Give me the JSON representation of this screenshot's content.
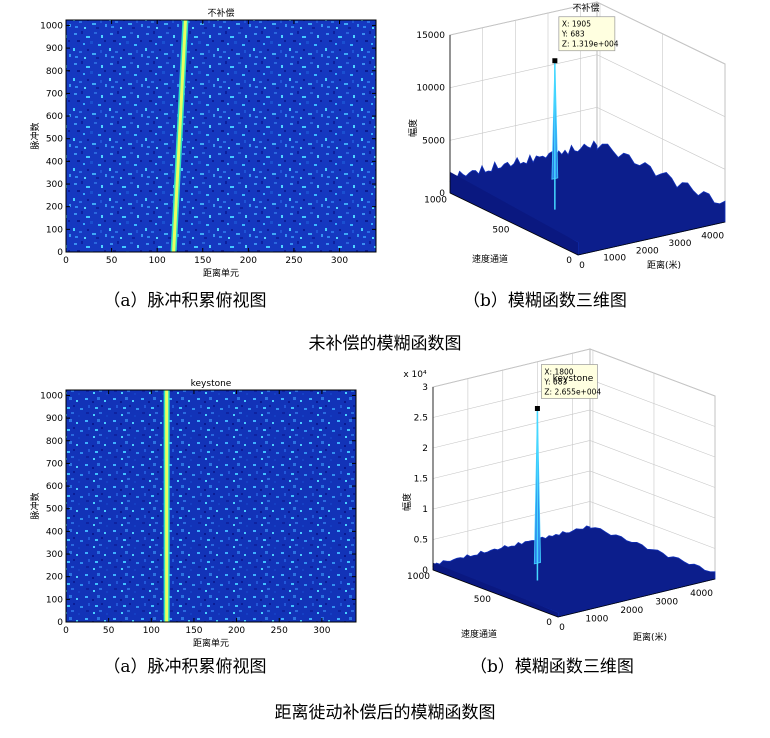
{
  "chart_data": [
    {
      "type": "heatmap",
      "title": "不补偿",
      "xlabel": "距离单元",
      "ylabel": "脉冲数",
      "xlim": [
        0,
        340
      ],
      "ylim": [
        0,
        1024
      ],
      "x_ticks": [
        "0",
        "50",
        "100",
        "150",
        "200",
        "250",
        "300"
      ],
      "y_ticks": [
        "0",
        "100",
        "200",
        "300",
        "400",
        "500",
        "600",
        "700",
        "800",
        "900",
        "1000"
      ],
      "trajectory": {
        "pulse": [
          0,
          1024
        ],
        "range_cell": [
          118,
          131
        ]
      },
      "caption": "（a）脉冲积累俯视图"
    },
    {
      "type": "surface3d",
      "title": "不补偿",
      "xlabel": "距离(米)",
      "ylabel": "速度通道",
      "zlabel": "幅度",
      "z_ticks": [
        "0",
        "5000",
        "10000",
        "15000"
      ],
      "x_ticks": [
        "0",
        "1000",
        "2000",
        "3000",
        "4000"
      ],
      "y_ticks": [
        "0",
        "500",
        "1000"
      ],
      "zlim": [
        0,
        15000
      ],
      "peak": {
        "x": 1905,
        "y": 683,
        "z": 13190
      },
      "datatip": [
        "X: 1905",
        "Y: 683",
        "Z: 1.319e+004"
      ],
      "noise_floor": 2000,
      "caption": "（b）模糊函数三维图"
    },
    {
      "type": "heatmap",
      "title": "keystone",
      "xlabel": "距离单元",
      "ylabel": "脉冲数",
      "xlim": [
        0,
        340
      ],
      "ylim": [
        0,
        1024
      ],
      "x_ticks": [
        "0",
        "50",
        "100",
        "150",
        "200",
        "250",
        "300"
      ],
      "y_ticks": [
        "0",
        "100",
        "200",
        "300",
        "400",
        "500",
        "600",
        "700",
        "800",
        "900",
        "1000"
      ],
      "trajectory": {
        "pulse": [
          0,
          1024
        ],
        "range_cell": [
          118,
          118
        ]
      },
      "caption": "（a）脉冲积累俯视图"
    },
    {
      "type": "surface3d",
      "title": "keystone",
      "xlabel": "距离(米)",
      "ylabel": "速度通道",
      "zlabel": "幅度",
      "z_exponent": "x 10⁴",
      "z_ticks": [
        "0",
        "0.5",
        "1",
        "1.5",
        "2",
        "2.5",
        "3"
      ],
      "x_ticks": [
        "0",
        "1000",
        "2000",
        "3000",
        "4000"
      ],
      "y_ticks": [
        "0",
        "500",
        "1000"
      ],
      "zlim": [
        0,
        30000
      ],
      "peak": {
        "x": 1800,
        "y": 683,
        "z": 26550
      },
      "datatip": [
        "X: 1800",
        "Y: 683",
        "Z: 2.655e+004"
      ],
      "noise_floor": 1200,
      "caption": "（b）模糊函数三维图"
    }
  ],
  "figure_captions": [
    "未补偿的模糊函数图",
    "距离徙动补偿后的模糊函数图"
  ],
  "colors": {
    "colormap_dark": "#0a1f9e",
    "colormap_light": "#40c8ff",
    "line": "#e8ff60",
    "surface": "#0c1e8c"
  }
}
